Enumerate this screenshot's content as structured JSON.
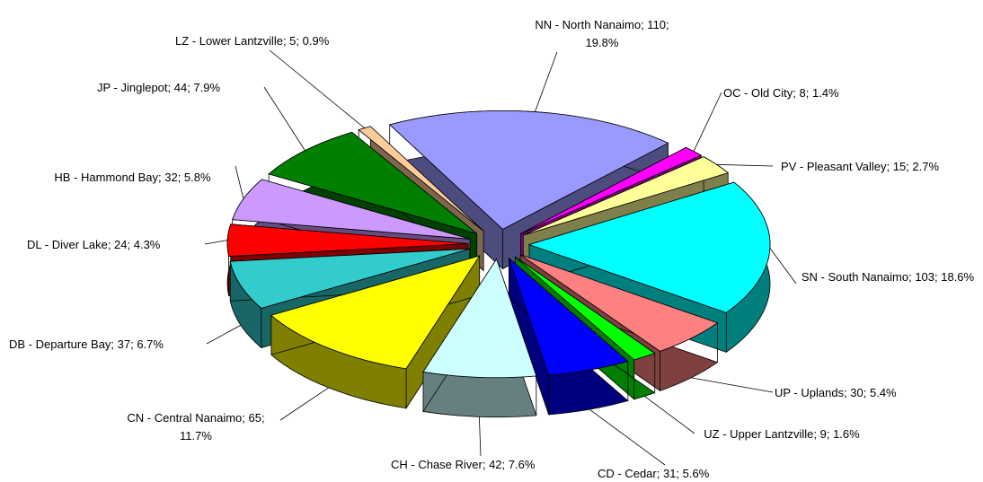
{
  "chart_data": {
    "type": "pie",
    "values": [
      110,
      8,
      15,
      103,
      30,
      9,
      31,
      42,
      65,
      37,
      24,
      32,
      44,
      5
    ],
    "value_labels": [
      "NN - North Nanaimo; 110; 19.8%",
      "OC - Old City; 8; 1.4%",
      "PV - Pleasant Valley; 15; 2.7%",
      "SN - South Nanaimo; 103; 18.6%",
      "UP - Uplands; 30; 5.4%",
      "UZ - Upper Lantzville; 9; 1.6%",
      "CD - Cedar; 31; 5.6%",
      "CH - Chase River; 42; 7.6%",
      "CN - Central Nanaimo; 65; 11.7%",
      "DB - Departure Bay; 37; 6.7%",
      "DL - Diver Lake; 24; 4.3%",
      "HB - Hammond Bay; 32; 5.8%",
      "JP - Jinglepot; 44; 7.9%",
      "LZ - Lower Lantzville; 5; 0.9%"
    ],
    "colors": [
      "#9999ff",
      "#ff00ff",
      "#ffff99",
      "#00ffff",
      "#ff8080",
      "#00ff00",
      "#0000ff",
      "#ccffff",
      "#ffff00",
      "#33cccc",
      "#ff0000",
      "#cc99ff",
      "#008000",
      "#ffcc99"
    ]
  }
}
